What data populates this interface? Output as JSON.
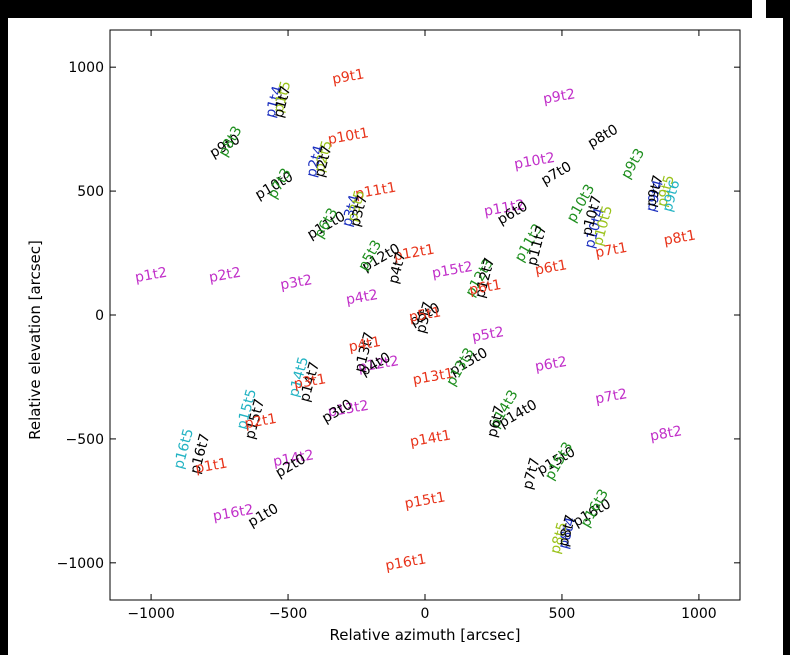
{
  "chart_data": {
    "type": "scatter",
    "title": "",
    "xlabel": "Relative azimuth [arcsec]",
    "ylabel": "Relative elevation [arcsec]",
    "xlim": [
      -1150,
      1150
    ],
    "ylim": [
      -1150,
      1150
    ],
    "xticks": [
      -1000,
      -500,
      0,
      500,
      1000
    ],
    "yticks": [
      -1000,
      -500,
      0,
      500,
      1000
    ],
    "xtick_labels": [
      "−1000",
      "−500",
      "0",
      "500",
      "1000"
    ],
    "ytick_labels": [
      "−1000",
      "−500",
      "0",
      "500",
      "1000"
    ],
    "grid": false,
    "legend": "none",
    "colors": {
      "black": "#000000",
      "red": "#e8341b",
      "magenta": "#c130c9",
      "green": "#1f8f1f",
      "blue": "#1b2fbf",
      "yellowgreen": "#9ac21a",
      "cyan": "#22b3c3"
    },
    "labels": [
      {
        "text": "p9t1",
        "x": -280,
        "y": 960,
        "color": "red",
        "rotation": -10
      },
      {
        "text": "p10t1",
        "x": -280,
        "y": 720,
        "color": "red",
        "rotation": -10
      },
      {
        "text": "p11t1",
        "x": -180,
        "y": 500,
        "color": "red",
        "rotation": -10
      },
      {
        "text": "p12t1",
        "x": -40,
        "y": 250,
        "color": "red",
        "rotation": -10
      },
      {
        "text": "p13t1",
        "x": 30,
        "y": -250,
        "color": "red",
        "rotation": -10
      },
      {
        "text": "p14t1",
        "x": 20,
        "y": -500,
        "color": "red",
        "rotation": -10
      },
      {
        "text": "p15t1",
        "x": 0,
        "y": -750,
        "color": "red",
        "rotation": -10
      },
      {
        "text": "p16t1",
        "x": -70,
        "y": -1000,
        "color": "red",
        "rotation": -10
      },
      {
        "text": "p7t1",
        "x": 680,
        "y": 260,
        "color": "red",
        "rotation": -10
      },
      {
        "text": "p8t1",
        "x": 930,
        "y": 310,
        "color": "red",
        "rotation": -10
      },
      {
        "text": "p6t1",
        "x": 460,
        "y": 190,
        "color": "red",
        "rotation": -10
      },
      {
        "text": "p1t2",
        "x": -1000,
        "y": 160,
        "color": "magenta",
        "rotation": -10
      },
      {
        "text": "p2t2",
        "x": -730,
        "y": 160,
        "color": "magenta",
        "rotation": -10
      },
      {
        "text": "p3t2",
        "x": -470,
        "y": 130,
        "color": "magenta",
        "rotation": -10
      },
      {
        "text": "p4t2",
        "x": -230,
        "y": 70,
        "color": "magenta",
        "rotation": -10
      },
      {
        "text": "p5t2",
        "x": 230,
        "y": -80,
        "color": "magenta",
        "rotation": -10
      },
      {
        "text": "p6t2",
        "x": 460,
        "y": -200,
        "color": "magenta",
        "rotation": -10
      },
      {
        "text": "p7t2",
        "x": 680,
        "y": -330,
        "color": "magenta",
        "rotation": -10
      },
      {
        "text": "p8t2",
        "x": 880,
        "y": -480,
        "color": "magenta",
        "rotation": -10
      },
      {
        "text": "p9t2",
        "x": 490,
        "y": 880,
        "color": "magenta",
        "rotation": -10
      },
      {
        "text": "p10t2",
        "x": 400,
        "y": 620,
        "color": "magenta",
        "rotation": -10
      },
      {
        "text": "p11t2",
        "x": 290,
        "y": 430,
        "color": "magenta",
        "rotation": -10
      },
      {
        "text": "p12t2",
        "x": -170,
        "y": -200,
        "color": "magenta",
        "rotation": -10
      },
      {
        "text": "p13t2",
        "x": -280,
        "y": -380,
        "color": "magenta",
        "rotation": -10
      },
      {
        "text": "p14t2",
        "x": -480,
        "y": -580,
        "color": "magenta",
        "rotation": -10
      },
      {
        "text": "p15t2",
        "x": 100,
        "y": 180,
        "color": "magenta",
        "rotation": -10
      },
      {
        "text": "p16t2",
        "x": -700,
        "y": -800,
        "color": "magenta",
        "rotation": -10
      },
      {
        "text": "p8t0",
        "x": 650,
        "y": 720,
        "color": "black",
        "rotation": -30
      },
      {
        "text": "p7t0",
        "x": 480,
        "y": 570,
        "color": "black",
        "rotation": -30
      },
      {
        "text": "p9t0",
        "x": -730,
        "y": 680,
        "color": "black",
        "rotation": -30
      },
      {
        "text": "p10t0",
        "x": -550,
        "y": 520,
        "color": "black",
        "rotation": -30
      },
      {
        "text": "p11t0",
        "x": -360,
        "y": 360,
        "color": "black",
        "rotation": -30
      },
      {
        "text": "p12t0",
        "x": -160,
        "y": 230,
        "color": "black",
        "rotation": -30
      },
      {
        "text": "p13t0",
        "x": 160,
        "y": -190,
        "color": "black",
        "rotation": -30
      },
      {
        "text": "p14t0",
        "x": 340,
        "y": -400,
        "color": "black",
        "rotation": -30
      },
      {
        "text": "p15t0",
        "x": 480,
        "y": -590,
        "color": "black",
        "rotation": -30
      },
      {
        "text": "p16t0",
        "x": 610,
        "y": -800,
        "color": "black",
        "rotation": -30
      },
      {
        "text": "p6t0",
        "x": 320,
        "y": 410,
        "color": "black",
        "rotation": -30
      },
      {
        "text": "p1t0",
        "x": -590,
        "y": -810,
        "color": "black",
        "rotation": -30
      },
      {
        "text": "p2t0",
        "x": -490,
        "y": -610,
        "color": "black",
        "rotation": -30
      },
      {
        "text": "p3t0",
        "x": -320,
        "y": -390,
        "color": "black",
        "rotation": -30
      },
      {
        "text": "p4t0",
        "x": -180,
        "y": -200,
        "color": "black",
        "rotation": -30
      },
      {
        "text": "p5t0",
        "x": 0,
        "y": 0,
        "color": "black",
        "rotation": -30
      },
      {
        "text": "p9t3",
        "x": 760,
        "y": 610,
        "color": "green",
        "rotation": -60
      },
      {
        "text": "p10t3",
        "x": 570,
        "y": 450,
        "color": "green",
        "rotation": -60
      },
      {
        "text": "p11t3",
        "x": 380,
        "y": 290,
        "color": "green",
        "rotation": -60
      },
      {
        "text": "p12t3",
        "x": 200,
        "y": 150,
        "color": "green",
        "rotation": -60
      },
      {
        "text": "p13t3",
        "x": 130,
        "y": -210,
        "color": "green",
        "rotation": -60
      },
      {
        "text": "p14t3",
        "x": 290,
        "y": -380,
        "color": "green",
        "rotation": -60
      },
      {
        "text": "p15t3",
        "x": 490,
        "y": -590,
        "color": "green",
        "rotation": -60
      },
      {
        "text": "p16t3",
        "x": 620,
        "y": -780,
        "color": "green",
        "rotation": -60
      },
      {
        "text": "p8t3",
        "x": -710,
        "y": 700,
        "color": "green",
        "rotation": -60
      },
      {
        "text": "p7t3",
        "x": -530,
        "y": 530,
        "color": "green",
        "rotation": -60
      },
      {
        "text": "p6t3",
        "x": -360,
        "y": 370,
        "color": "green",
        "rotation": -60
      },
      {
        "text": "p5t3",
        "x": -200,
        "y": 240,
        "color": "green",
        "rotation": -60
      },
      {
        "text": "p1t4",
        "x": -550,
        "y": 860,
        "color": "blue",
        "rotation": -75
      },
      {
        "text": "p2t4",
        "x": -400,
        "y": 620,
        "color": "blue",
        "rotation": -75
      },
      {
        "text": "p3t4",
        "x": -270,
        "y": 420,
        "color": "blue",
        "rotation": -75
      },
      {
        "text": "p9t4",
        "x": 840,
        "y": 480,
        "color": "blue",
        "rotation": -75
      },
      {
        "text": "p10t4",
        "x": 620,
        "y": 350,
        "color": "blue",
        "rotation": -75
      },
      {
        "text": "p8t4",
        "x": 520,
        "y": -880,
        "color": "blue",
        "rotation": -75
      },
      {
        "text": "p1t5",
        "x": -520,
        "y": 880,
        "color": "yellowgreen",
        "rotation": -75
      },
      {
        "text": "p2t5",
        "x": -370,
        "y": 640,
        "color": "yellowgreen",
        "rotation": -75
      },
      {
        "text": "p3t5",
        "x": -250,
        "y": 440,
        "color": "yellowgreen",
        "rotation": -75
      },
      {
        "text": "p9t5",
        "x": 880,
        "y": 500,
        "color": "yellowgreen",
        "rotation": -75
      },
      {
        "text": "p10t5",
        "x": 650,
        "y": 360,
        "color": "yellowgreen",
        "rotation": -75
      },
      {
        "text": "p8t5",
        "x": 490,
        "y": -900,
        "color": "yellowgreen",
        "rotation": -75
      },
      {
        "text": "p16t5",
        "x": -880,
        "y": -540,
        "color": "cyan",
        "rotation": -75
      },
      {
        "text": "p15t5",
        "x": -650,
        "y": -380,
        "color": "cyan",
        "rotation": -75
      },
      {
        "text": "p14t5",
        "x": -460,
        "y": -250,
        "color": "cyan",
        "rotation": -75
      },
      {
        "text": "p9t6",
        "x": 900,
        "y": 480,
        "color": "cyan",
        "rotation": -75
      },
      {
        "text": "p1t7",
        "x": -520,
        "y": 860,
        "color": "black",
        "rotation": -75
      },
      {
        "text": "p2t7",
        "x": -370,
        "y": 620,
        "color": "black",
        "rotation": -75
      },
      {
        "text": "p3t7",
        "x": -240,
        "y": 420,
        "color": "black",
        "rotation": -75
      },
      {
        "text": "p4t7",
        "x": -100,
        "y": 190,
        "color": "black",
        "rotation": -75
      },
      {
        "text": "p5t7",
        "x": 0,
        "y": -10,
        "color": "black",
        "rotation": -75
      },
      {
        "text": "p13t7",
        "x": -220,
        "y": -150,
        "color": "black",
        "rotation": -75
      },
      {
        "text": "p14t7",
        "x": -420,
        "y": -270,
        "color": "black",
        "rotation": -75
      },
      {
        "text": "p15t7",
        "x": -620,
        "y": -420,
        "color": "black",
        "rotation": -75
      },
      {
        "text": "p16t7",
        "x": -820,
        "y": -560,
        "color": "black",
        "rotation": -75
      },
      {
        "text": "p12t7",
        "x": 220,
        "y": 150,
        "color": "black",
        "rotation": -75
      },
      {
        "text": "p11t7",
        "x": 410,
        "y": 280,
        "color": "black",
        "rotation": -75
      },
      {
        "text": "p10t7",
        "x": 610,
        "y": 400,
        "color": "black",
        "rotation": -75
      },
      {
        "text": "p9t7",
        "x": 840,
        "y": 500,
        "color": "black",
        "rotation": -75
      },
      {
        "text": "p6t7",
        "x": 260,
        "y": -430,
        "color": "black",
        "rotation": -75
      },
      {
        "text": "p7t7",
        "x": 390,
        "y": -640,
        "color": "black",
        "rotation": -75
      },
      {
        "text": "p8t7",
        "x": 520,
        "y": -870,
        "color": "black",
        "rotation": -75
      },
      {
        "text": "p1t1",
        "x": -780,
        "y": -610,
        "color": "red",
        "rotation": -10
      },
      {
        "text": "p2t1",
        "x": -600,
        "y": -430,
        "color": "red",
        "rotation": -10
      },
      {
        "text": "p3t1",
        "x": -420,
        "y": -270,
        "color": "red",
        "rotation": -10
      },
      {
        "text": "p4t1",
        "x": -220,
        "y": -120,
        "color": "red",
        "rotation": -10
      },
      {
        "text": "p5t1",
        "x": 0,
        "y": 0,
        "color": "red",
        "rotation": -10
      },
      {
        "text": "p6t1",
        "x": 220,
        "y": 110,
        "color": "red",
        "rotation": -10
      }
    ]
  }
}
